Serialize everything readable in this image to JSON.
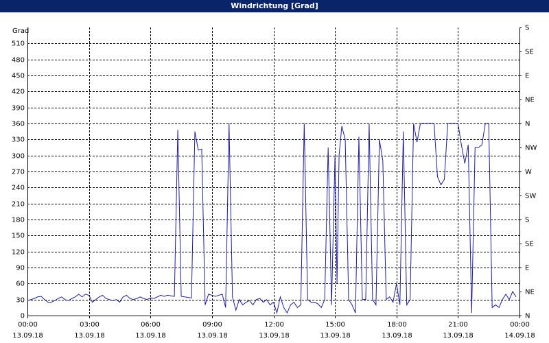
{
  "chart_data": {
    "type": "line",
    "title": "Windrichtung [Grad]",
    "y_label": "Grad",
    "x": [
      0,
      10,
      20,
      30,
      40,
      50,
      60,
      70,
      80,
      90,
      100,
      110,
      120,
      130,
      140,
      150,
      160,
      170,
      180,
      190,
      200,
      210,
      220,
      230,
      240,
      250,
      260,
      270,
      280,
      290,
      300,
      310,
      320,
      330,
      340,
      350,
      360,
      370,
      380,
      390,
      400,
      410,
      420,
      430,
      440,
      450,
      460,
      470,
      480,
      490,
      500,
      510,
      520,
      530,
      540,
      550,
      560,
      570,
      580,
      590,
      600,
      610,
      620,
      630,
      640,
      650,
      660,
      670,
      680,
      690,
      700,
      710,
      720,
      730,
      740,
      750,
      760,
      770,
      780,
      790,
      800,
      810,
      820,
      830,
      840,
      850,
      860,
      870,
      880,
      890,
      900,
      906,
      912,
      920,
      930,
      940,
      950,
      960,
      970,
      980,
      990,
      1000,
      1010,
      1020,
      1030,
      1040,
      1050,
      1060,
      1070,
      1080,
      1090,
      1100,
      1110,
      1120,
      1130,
      1140,
      1150,
      1160,
      1170,
      1180,
      1190,
      1200,
      1210,
      1220,
      1230,
      1240,
      1250,
      1260,
      1270,
      1280,
      1290,
      1300,
      1310,
      1320,
      1330,
      1340,
      1350,
      1360,
      1370,
      1380,
      1390,
      1400,
      1410,
      1420,
      1430
    ],
    "values": [
      28,
      30,
      32,
      35,
      36,
      30,
      25,
      25,
      28,
      32,
      35,
      30,
      28,
      32,
      35,
      40,
      35,
      40,
      38,
      25,
      30,
      35,
      38,
      32,
      30,
      28,
      30,
      25,
      35,
      38,
      32,
      30,
      32,
      35,
      32,
      30,
      33,
      32,
      35,
      38,
      36,
      38,
      37,
      36,
      348,
      36,
      35,
      34,
      33,
      345,
      310,
      312,
      20,
      40,
      38,
      36,
      38,
      40,
      15,
      360,
      35,
      10,
      30,
      20,
      25,
      28,
      20,
      30,
      32,
      25,
      30,
      20,
      25,
      5,
      35,
      15,
      5,
      20,
      25,
      15,
      20,
      360,
      30,
      25,
      25,
      22,
      15,
      30,
      315,
      20,
      300,
      60,
      300,
      355,
      330,
      30,
      20,
      5,
      335,
      30,
      30,
      360,
      30,
      20,
      330,
      290,
      30,
      35,
      25,
      60,
      20,
      345,
      20,
      30,
      360,
      325,
      360,
      360,
      360,
      360,
      360,
      260,
      245,
      255,
      360,
      360,
      360,
      360,
      320,
      285,
      320,
      5,
      315,
      315,
      320,
      360,
      360,
      15,
      20,
      15,
      30,
      40,
      30,
      45,
      35
    ],
    "color": "#1c1ca8",
    "xlim": [
      0,
      1440
    ],
    "xticks": [
      {
        "value": 0,
        "label": "00:00"
      },
      {
        "value": 180,
        "label": "03:00"
      },
      {
        "value": 360,
        "label": "06:00"
      },
      {
        "value": 540,
        "label": "09:00"
      },
      {
        "value": 720,
        "label": "12:00"
      },
      {
        "value": 900,
        "label": "15:00"
      },
      {
        "value": 1080,
        "label": "18:00"
      },
      {
        "value": 1260,
        "label": "21:00"
      },
      {
        "value": 1440,
        "label": "00:00"
      }
    ],
    "xtick_dates": [
      "13.09.18",
      "13.09.18",
      "13.09.18",
      "13.09.18",
      "13.09.18",
      "13.09.18",
      "13.09.18",
      "13.09.18",
      "14.09.18"
    ],
    "ylim": [
      0,
      540
    ],
    "yticks": [
      0,
      30,
      60,
      90,
      120,
      150,
      180,
      210,
      240,
      270,
      300,
      330,
      360,
      390,
      420,
      450,
      480,
      510
    ],
    "y2lim": [
      0,
      540
    ],
    "y2ticks": [
      {
        "value": 0,
        "label": "N"
      },
      {
        "value": 45,
        "label": "NE"
      },
      {
        "value": 90,
        "label": "E"
      },
      {
        "value": 135,
        "label": "SE"
      },
      {
        "value": 180,
        "label": "S"
      },
      {
        "value": 225,
        "label": "SW"
      },
      {
        "value": 270,
        "label": "W"
      },
      {
        "value": 315,
        "label": "NW"
      },
      {
        "value": 360,
        "label": "N"
      },
      {
        "value": 405,
        "label": "NE"
      },
      {
        "value": 450,
        "label": "E"
      },
      {
        "value": 495,
        "label": "SE"
      },
      {
        "value": 540,
        "label": "S"
      }
    ],
    "grid": true
  }
}
